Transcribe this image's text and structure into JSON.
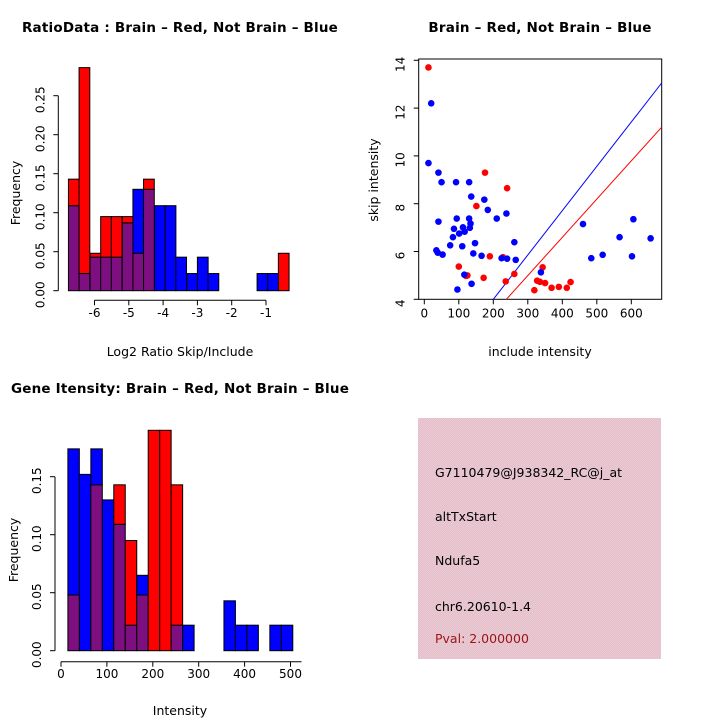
{
  "colors": {
    "red": "#ff0000",
    "blue": "#0000ff",
    "overlap": "#7d0f80",
    "axis": "#000000",
    "pval_text": "#9b1414",
    "info_bg_pink": "#f3bac6",
    "info_bg_gray": "#dbd0da"
  },
  "panels": {
    "ratio_hist": {
      "title": "RatioData : Brain – Red, Not Brain – Blue",
      "xlabel": "Log2 Ratio Skip/Include",
      "ylabel": "Frequency"
    },
    "scatter": {
      "title": "Brain – Red, Not Brain – Blue",
      "xlabel": "include intensity",
      "ylabel": "skip intensity"
    },
    "gene_hist": {
      "title": "Gene Itensity: Brain – Red, Not Brain – Blue",
      "xlabel": "Intensity",
      "ylabel": "Frequency"
    },
    "info_box": {
      "probe_id": "G7110479@J938342_RC@j_at",
      "event_type": "altTxStart",
      "gene_name": "Ndufa5",
      "locus": "chr6.20610-1.4",
      "pval": "Pval: 2.000000"
    }
  },
  "chart_data": [
    {
      "id": "ratio_hist",
      "type": "bar",
      "variant": "overlaid-histogram",
      "title": "RatioData : Brain – Red, Not Brain – Blue",
      "xlabel": "Log2 Ratio Skip/Include",
      "ylabel": "Frequency",
      "legend": [
        {
          "name": "Brain",
          "color": "red"
        },
        {
          "name": "Not Brain",
          "color": "blue"
        }
      ],
      "bin_width": 0.313,
      "bins": [
        {
          "x": -6.76,
          "red": 0.143,
          "blue": 0.109
        },
        {
          "x": -6.45,
          "red": 0.286,
          "blue": 0.022
        },
        {
          "x": -6.13,
          "red": 0.048,
          "blue": 0.043
        },
        {
          "x": -5.82,
          "red": 0.095,
          "blue": 0.043
        },
        {
          "x": -5.51,
          "red": 0.095,
          "blue": 0.043
        },
        {
          "x": -5.19,
          "red": 0.095,
          "blue": 0.087
        },
        {
          "x": -4.88,
          "red": 0.048,
          "blue": 0.13
        },
        {
          "x": -4.57,
          "red": 0.143,
          "blue": 0.13
        },
        {
          "x": -4.25,
          "red": 0,
          "blue": 0.109
        },
        {
          "x": -3.94,
          "red": 0,
          "blue": 0.109
        },
        {
          "x": -3.63,
          "red": 0,
          "blue": 0.043
        },
        {
          "x": -3.31,
          "red": 0,
          "blue": 0.022
        },
        {
          "x": -3.0,
          "red": 0,
          "blue": 0.043
        },
        {
          "x": -2.69,
          "red": 0,
          "blue": 0.022
        },
        {
          "x": -1.26,
          "red": 0,
          "blue": 0.022
        },
        {
          "x": -0.95,
          "red": 0,
          "blue": 0.022
        },
        {
          "x": -0.64,
          "red": 0.048,
          "blue": 0
        }
      ],
      "x_ticks": [
        -6,
        -5,
        -4,
        -3,
        -2,
        -1
      ],
      "x_tick_labels": [
        "-6",
        "-5",
        "-4",
        "-3",
        "-2",
        "-1"
      ],
      "y_ticks": [
        0,
        0.05,
        0.1,
        0.15,
        0.2,
        0.25
      ],
      "y_tick_labels": [
        "0.00",
        "0.05",
        "0.10",
        "0.15",
        "0.20",
        "0.25"
      ],
      "xlim": [
        -6.9,
        -0.2
      ],
      "ylim": [
        0,
        0.29
      ]
    },
    {
      "id": "scatter",
      "type": "scatter",
      "title": "Brain – Red, Not Brain – Blue",
      "xlabel": "include intensity",
      "ylabel": "skip intensity",
      "x_ticks": [
        0,
        100,
        200,
        300,
        400,
        500,
        600
      ],
      "x_tick_labels": [
        "0",
        "100",
        "200",
        "300",
        "400",
        "500",
        "600"
      ],
      "y_ticks": [
        4,
        6,
        8,
        10,
        12,
        14
      ],
      "y_tick_labels": [
        "4",
        "6",
        "8",
        "10",
        "12",
        "14"
      ],
      "xlim": [
        -16,
        688
      ],
      "ylim": [
        4,
        14.05
      ],
      "series": [
        {
          "name": "Brain",
          "color": "red",
          "points": [
            [
              12,
              13.7
            ],
            [
              176,
              9.3
            ],
            [
              240,
              8.65
            ],
            [
              151,
              7.9
            ],
            [
              100,
              5.37
            ],
            [
              125,
              5.0
            ],
            [
              121,
              4.98
            ],
            [
              172,
              4.9
            ],
            [
              190,
              5.8
            ],
            [
              228,
              5.76
            ],
            [
              236,
              4.75
            ],
            [
              261,
              5.06
            ],
            [
              343,
              5.34
            ],
            [
              327,
              4.78
            ],
            [
              335,
              4.73
            ],
            [
              350,
              4.68
            ],
            [
              319,
              4.38
            ],
            [
              369,
              4.48
            ],
            [
              390,
              4.52
            ],
            [
              413,
              4.48
            ],
            [
              424,
              4.72
            ]
          ]
        },
        {
          "name": "Not Brain",
          "color": "blue",
          "points": [
            [
              20,
              12.2
            ],
            [
              12,
              9.7
            ],
            [
              41,
              9.3
            ],
            [
              50,
              8.9
            ],
            [
              92,
              8.9
            ],
            [
              130,
              8.9
            ],
            [
              136,
              8.3
            ],
            [
              174,
              8.17
            ],
            [
              184,
              7.74
            ],
            [
              238,
              7.59
            ],
            [
              41,
              7.25
            ],
            [
              94,
              7.38
            ],
            [
              130,
              7.38
            ],
            [
              210,
              7.38
            ],
            [
              86,
              6.95
            ],
            [
              101,
              6.75
            ],
            [
              112,
              7.01
            ],
            [
              117,
              6.83
            ],
            [
              132,
              6.99
            ],
            [
              134,
              7.17
            ],
            [
              83,
              6.6
            ],
            [
              75,
              6.26
            ],
            [
              110,
              6.22
            ],
            [
              147,
              6.35
            ],
            [
              261,
              6.39
            ],
            [
              39,
              5.95
            ],
            [
              35,
              6.05
            ],
            [
              53,
              5.87
            ],
            [
              142,
              5.92
            ],
            [
              166,
              5.82
            ],
            [
              224,
              5.72
            ],
            [
              240,
              5.7
            ],
            [
              265,
              5.65
            ],
            [
              116,
              5.03
            ],
            [
              137,
              4.65
            ],
            [
              96,
              4.41
            ],
            [
              338,
              5.13
            ],
            [
              460,
              7.15
            ],
            [
              484,
              5.72
            ],
            [
              517,
              5.86
            ],
            [
              566,
              6.6
            ],
            [
              602,
              5.8
            ],
            [
              606,
              7.35
            ],
            [
              656,
              6.55
            ]
          ]
        }
      ],
      "lines": [
        {
          "color": "blue",
          "from": [
            200,
            4
          ],
          "to": [
            688,
            13.05
          ]
        },
        {
          "color": "red",
          "from": [
            238,
            4
          ],
          "to": [
            688,
            11.2
          ]
        }
      ]
    },
    {
      "id": "gene_hist",
      "type": "bar",
      "variant": "overlaid-histogram",
      "title": "Gene Itensity: Brain – Red, Not Brain – Blue",
      "xlabel": "Intensity",
      "ylabel": "Frequency",
      "legend": [
        {
          "name": "Brain",
          "color": "red"
        },
        {
          "name": "Not Brain",
          "color": "blue"
        }
      ],
      "bin_width": 25,
      "bins": [
        {
          "x": 15,
          "red": 0.048,
          "blue": 0.174
        },
        {
          "x": 40,
          "red": 0,
          "blue": 0.152
        },
        {
          "x": 65,
          "red": 0.143,
          "blue": 0.174
        },
        {
          "x": 90,
          "red": 0,
          "blue": 0.13
        },
        {
          "x": 115,
          "red": 0.143,
          "blue": 0.109
        },
        {
          "x": 140,
          "red": 0.095,
          "blue": 0.022
        },
        {
          "x": 165,
          "red": 0.048,
          "blue": 0.065
        },
        {
          "x": 190,
          "red": 0.19,
          "blue": 0
        },
        {
          "x": 215,
          "red": 0.19,
          "blue": 0
        },
        {
          "x": 240,
          "red": 0.143,
          "blue": 0.022
        },
        {
          "x": 265,
          "red": 0,
          "blue": 0.022
        },
        {
          "x": 355,
          "red": 0,
          "blue": 0.043
        },
        {
          "x": 380,
          "red": 0,
          "blue": 0.022
        },
        {
          "x": 405,
          "red": 0,
          "blue": 0.022
        },
        {
          "x": 455,
          "red": 0,
          "blue": 0.022
        },
        {
          "x": 480,
          "red": 0,
          "blue": 0.022
        }
      ],
      "x_ticks": [
        0,
        100,
        200,
        300,
        400,
        500
      ],
      "x_tick_labels": [
        "0",
        "100",
        "200",
        "300",
        "400",
        "500"
      ],
      "y_ticks": [
        0,
        0.05,
        0.1,
        0.15
      ],
      "y_tick_labels": [
        "0.00",
        "0.05",
        "0.10",
        "0.15"
      ],
      "xlim": [
        0,
        525
      ],
      "ylim": [
        0,
        0.19
      ]
    }
  ]
}
